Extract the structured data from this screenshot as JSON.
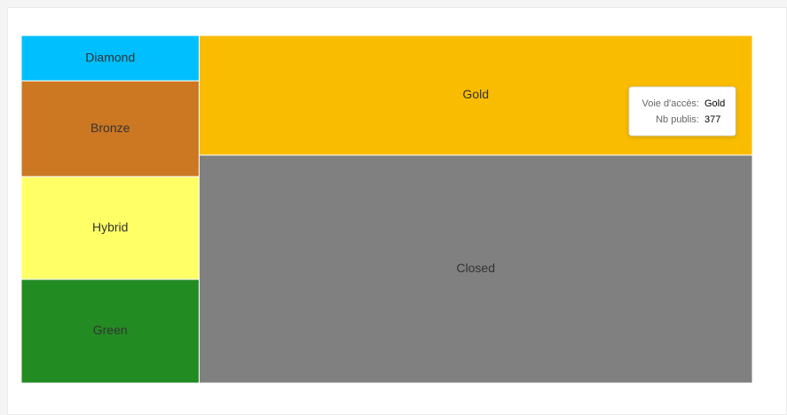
{
  "chart_data": {
    "type": "treemap",
    "categories": [
      "Diamond",
      "Bronze",
      "Hybrid",
      "Green",
      "Gold",
      "Closed"
    ],
    "values": [
      46,
      97,
      104,
      105,
      377,
      718
    ],
    "colors": [
      "#00bfff",
      "#cc7722",
      "#ffff66",
      "#228b22",
      "#f9bc00",
      "#808080"
    ],
    "tooltip": {
      "labels": [
        "Voie d'accès:",
        "Nb publis:"
      ],
      "index": 4
    }
  }
}
